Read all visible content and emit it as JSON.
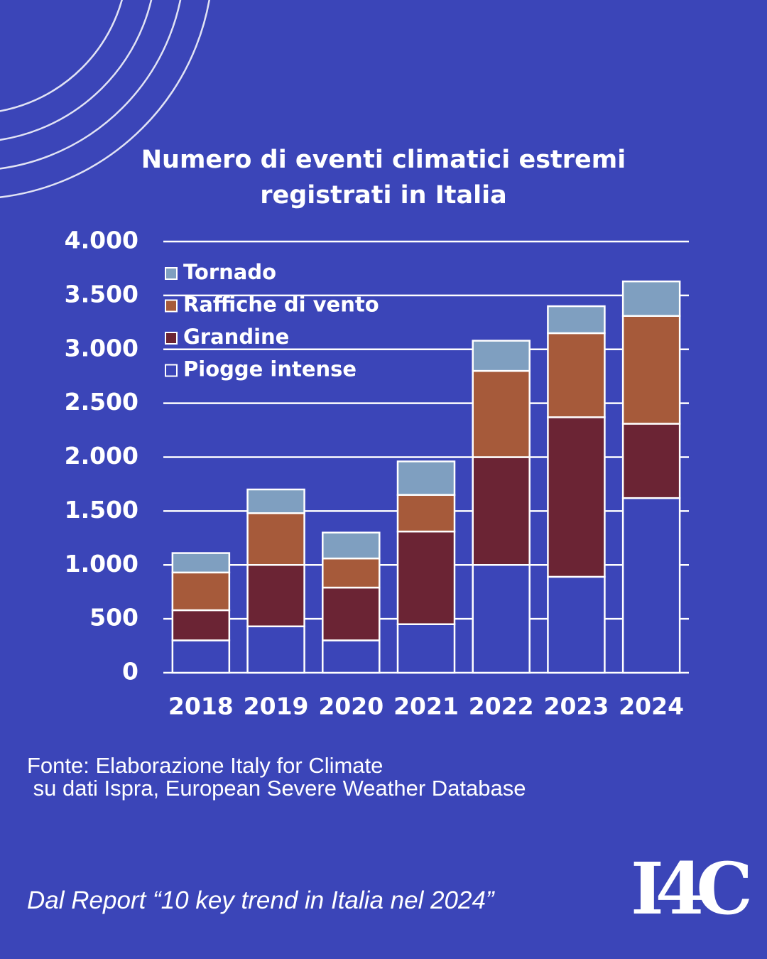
{
  "chart_data": {
    "type": "bar",
    "stacked": true,
    "title": "Numero di eventi climatici estremi registrati in Italia",
    "categories": [
      "2018",
      "2019",
      "2020",
      "2021",
      "2022",
      "2023",
      "2024"
    ],
    "series": [
      {
        "name": "Piogge intense",
        "color": "#3b45b8",
        "values": [
          300,
          430,
          300,
          450,
          1000,
          890,
          1620
        ]
      },
      {
        "name": "Grandine",
        "color": "#6b2434",
        "values": [
          280,
          570,
          490,
          860,
          1000,
          1480,
          690
        ]
      },
      {
        "name": "Raffiche di vento",
        "color": "#a65a3a",
        "values": [
          350,
          480,
          270,
          340,
          800,
          780,
          1000
        ]
      },
      {
        "name": "Tornado",
        "color": "#7f9fc0",
        "values": [
          180,
          220,
          240,
          310,
          280,
          250,
          320
        ]
      }
    ],
    "ylim": [
      0,
      4000
    ],
    "yticks": [
      0,
      500,
      {
        "value": 1000,
        "label": "1.000"
      },
      {
        "value": 1500,
        "label": "1.500"
      },
      {
        "value": 2000,
        "label": "2.000"
      },
      {
        "value": 2500,
        "label": "2.500"
      },
      {
        "value": 3000,
        "label": "3.000"
      },
      {
        "value": 3500,
        "label": "3.500"
      },
      {
        "value": 4000,
        "label": "4.000"
      }
    ],
    "grid": true,
    "legend": "upper left",
    "annotations": [
      "Fonte: Elaborazione Italy for Climate",
      " su dati Ispra, European Severe Weather Database",
      "Dal Report “10 key trend in Italia nel 2024”"
    ],
    "logo": "I4C"
  }
}
